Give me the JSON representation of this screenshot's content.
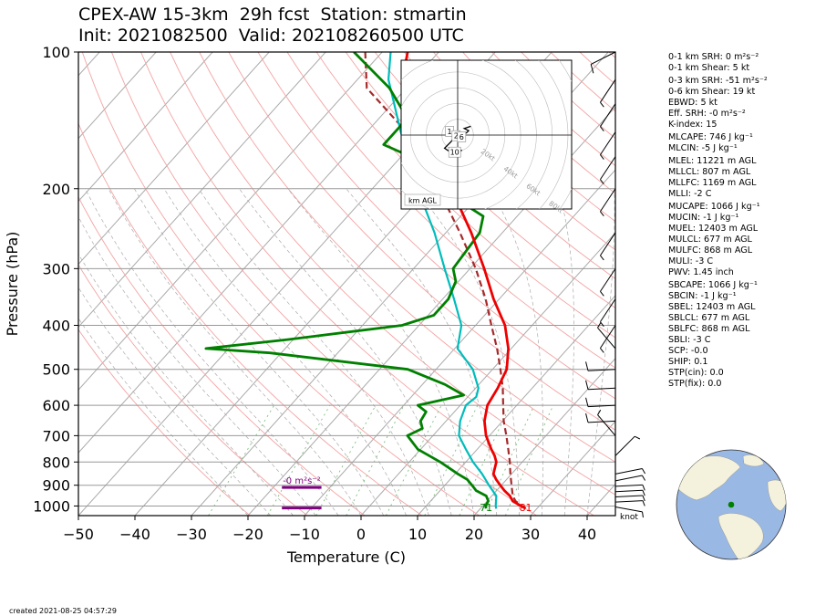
{
  "header": {
    "title_line1": "CPEX-AW 15-3km  29h fcst  Station: stmartin",
    "title_line2": "Init: 2021082500  Valid: 202108260500 UTC"
  },
  "footer": {
    "created": "created 2021-08-25 04:57:29"
  },
  "indices": [
    "0-1 km SRH: 0 m²s⁻²",
    "0-1 km Shear: 5 kt",
    "0-3 km SRH: -51 m²s⁻²",
    "0-6 km Shear: 19 kt",
    "EBWD: 5 kt",
    "Eff. SRH: -0 m²s⁻²",
    "K-index: 15",
    "MLCAPE: 746 J kg⁻¹",
    "MLCIN: -5 J kg⁻¹",
    "MLEL: 11221 m AGL",
    "MLLCL: 807 m AGL",
    "MLLFC: 1169 m AGL",
    "MLLI: -2 C",
    "MUCAPE: 1066 J kg⁻¹",
    "MUCIN: -1 J kg⁻¹",
    "MUEL: 12403 m AGL",
    "MULCL: 677 m AGL",
    "MULFC: 868 m AGL",
    "MULI: -3 C",
    "PWV: 1.45 inch",
    "SBCAPE: 1066 J kg⁻¹",
    "SBCIN: -1 J kg⁻¹",
    "SBEL: 12403 m AGL",
    "SBLCL: 677 m AGL",
    "SBLFC: 868 m AGL",
    "SBLI: -3 C",
    "SCP: -0.0",
    "SHIP: 0.1",
    "STP(cin): 0.0",
    "STP(fix): 0.0"
  ],
  "colors": {
    "temperature": "#ee0000",
    "dewpoint": "#008000",
    "wetbulb": "#00bcbc",
    "parcel": "#a52a2a",
    "srh_bar": "#800080",
    "dry_adiabat": "#f4a3a3",
    "moist_adiabat": "#aaaaaa",
    "mixing_ratio": "#7fbf7f",
    "ocean": "#9ab8e4",
    "land": "#f4f2dc",
    "station": "#008000"
  },
  "chart_data": [
    {
      "type": "line",
      "subtype": "skew-T log-P",
      "xlabel": "Temperature (C)",
      "ylabel": "Pressure (hPa)",
      "xlim": [
        -50,
        45
      ],
      "ylim": [
        1050,
        100
      ],
      "y_scale": "log",
      "x_ticks": [
        -50,
        -40,
        -30,
        -20,
        -10,
        0,
        10,
        20,
        30,
        40
      ],
      "y_ticks": [
        1000,
        900,
        800,
        700,
        600,
        500,
        400,
        300,
        200,
        100
      ],
      "grid": true,
      "series": [
        {
          "key": "temperature",
          "points": [
            [
              1013,
              28
            ],
            [
              1000,
              26.8
            ],
            [
              975,
              24.5
            ],
            [
              950,
              23.2
            ],
            [
              925,
              21.4
            ],
            [
              900,
              19.8
            ],
            [
              875,
              18.2
            ],
            [
              850,
              16.8
            ],
            [
              800,
              15.4
            ],
            [
              775,
              14.1
            ],
            [
              750,
              12.5
            ],
            [
              700,
              9.4
            ],
            [
              650,
              6.8
            ],
            [
              600,
              4.8
            ],
            [
              550,
              3.9
            ],
            [
              500,
              2.5
            ],
            [
              450,
              -0.5
            ],
            [
              400,
              -4.8
            ],
            [
              350,
              -11
            ],
            [
              300,
              -17.5
            ],
            [
              250,
              -25.5
            ],
            [
              200,
              -36
            ],
            [
              170,
              -43.5
            ],
            [
              150,
              -49.5
            ],
            [
              130,
              -56
            ],
            [
              115,
              -62
            ],
            [
              100,
              -65.5
            ]
          ]
        },
        {
          "key": "dewpoint",
          "points": [
            [
              1013,
              21
            ],
            [
              1000,
              20.5
            ],
            [
              975,
              20.2
            ],
            [
              950,
              19
            ],
            [
              925,
              16.4
            ],
            [
              900,
              14.8
            ],
            [
              875,
              13.1
            ],
            [
              850,
              10.5
            ],
            [
              800,
              5.5
            ],
            [
              750,
              -0.5
            ],
            [
              700,
              -4.5
            ],
            [
              675,
              -3
            ],
            [
              650,
              -4.5
            ],
            [
              620,
              -5
            ],
            [
              600,
              -7.5
            ],
            [
              570,
              -1
            ],
            [
              540,
              -6
            ],
            [
              500,
              -15
            ],
            [
              460,
              -42
            ],
            [
              450,
              -54
            ],
            [
              430,
              -41
            ],
            [
              400,
              -23
            ],
            [
              380,
              -19
            ],
            [
              350,
              -19
            ],
            [
              320,
              -20.5
            ],
            [
              300,
              -23
            ],
            [
              250,
              -24
            ],
            [
              230,
              -26
            ],
            [
              200,
              -38
            ],
            [
              180,
              -42
            ],
            [
              160,
              -55
            ],
            [
              140,
              -55
            ],
            [
              120,
              -63
            ],
            [
              100,
              -75
            ]
          ]
        },
        {
          "key": "wetbulb",
          "points": [
            [
              1013,
              22.8
            ],
            [
              1000,
              22.3
            ],
            [
              950,
              20.8
            ],
            [
              900,
              17.8
            ],
            [
              850,
              14.8
            ],
            [
              800,
              11.3
            ],
            [
              750,
              8
            ],
            [
              700,
              4.6
            ],
            [
              650,
              2.5
            ],
            [
              600,
              1
            ],
            [
              575,
              1.5
            ],
            [
              550,
              0.5
            ],
            [
              500,
              -3.5
            ],
            [
              450,
              -9.5
            ],
            [
              400,
              -12.5
            ],
            [
              350,
              -18
            ],
            [
              300,
              -24.5
            ],
            [
              250,
              -32
            ],
            [
              200,
              -42
            ],
            [
              150,
              -54
            ],
            [
              115,
              -64.5
            ],
            [
              100,
              -68.5
            ]
          ]
        },
        {
          "key": "parcel",
          "points": [
            [
              1013,
              28
            ],
            [
              975,
              25
            ],
            [
              950,
              23.7
            ],
            [
              900,
              21.8
            ],
            [
              850,
              19.8
            ],
            [
              800,
              17.8
            ],
            [
              750,
              15.5
            ],
            [
              700,
              13
            ],
            [
              650,
              10.2
            ],
            [
              600,
              7.6
            ],
            [
              550,
              4.8
            ],
            [
              500,
              1.4
            ],
            [
              450,
              -2.5
            ],
            [
              400,
              -7.2
            ],
            [
              350,
              -12.4
            ],
            [
              300,
              -19
            ],
            [
              250,
              -27.5
            ],
            [
              200,
              -38.3
            ],
            [
              150,
              -53
            ],
            [
              120,
              -67
            ],
            [
              100,
              -73
            ]
          ]
        }
      ],
      "surface_labels": [
        {
          "key": "dewpoint",
          "text": "71",
          "temp": 21
        },
        {
          "key": "temperature",
          "text": "81",
          "temp": 28
        }
      ],
      "srh_bars": [
        {
          "label": "-0 m²s⁻²",
          "pressure": 910,
          "t_from": -14,
          "t_to": -7
        },
        {
          "label": "",
          "pressure": 1010,
          "t_from": -14,
          "t_to": -7
        }
      ],
      "wind_barbs_label": "knot",
      "wind_barbs": [
        {
          "pressure": 1005,
          "speed": 7,
          "dir": "east-southeast"
        },
        {
          "pressure": 980,
          "speed": 7,
          "dir": "east"
        },
        {
          "pressure": 955,
          "speed": 7,
          "dir": "east"
        },
        {
          "pressure": 930,
          "speed": 7,
          "dir": "east"
        },
        {
          "pressure": 905,
          "speed": 6,
          "dir": "east"
        },
        {
          "pressure": 880,
          "speed": 6,
          "dir": "east-northeast"
        },
        {
          "pressure": 850,
          "speed": 5,
          "dir": "east-northeast"
        },
        {
          "pressure": 775,
          "speed": 6,
          "dir": "northeast"
        },
        {
          "pressure": 700,
          "speed": 6,
          "dir": "northwest"
        },
        {
          "pressure": 650,
          "speed": 8,
          "dir": "west"
        },
        {
          "pressure": 600,
          "speed": 9,
          "dir": "west"
        },
        {
          "pressure": 550,
          "speed": 10,
          "dir": "west"
        },
        {
          "pressure": 500,
          "speed": 9,
          "dir": "west"
        },
        {
          "pressure": 450,
          "speed": 7,
          "dir": "northwest"
        },
        {
          "pressure": 400,
          "speed": 6,
          "dir": "southwest"
        },
        {
          "pressure": 350,
          "speed": 5,
          "dir": "southwest"
        },
        {
          "pressure": 300,
          "speed": 6,
          "dir": "southwest"
        },
        {
          "pressure": 250,
          "speed": 7,
          "dir": "southwest"
        },
        {
          "pressure": 200,
          "speed": 6,
          "dir": "southwest"
        },
        {
          "pressure": 170,
          "speed": 5,
          "dir": "southwest"
        },
        {
          "pressure": 150,
          "speed": 6,
          "dir": "southwest"
        },
        {
          "pressure": 130,
          "speed": 7,
          "dir": "southwest"
        },
        {
          "pressure": 115,
          "speed": 6,
          "dir": "southwest"
        },
        {
          "pressure": 100,
          "speed": 8,
          "dir": "west-southwest"
        }
      ]
    },
    {
      "type": "line",
      "subtype": "hodograph",
      "units_label": "km AGL",
      "ring_labels": [
        "20kt",
        "40kt",
        "60kt",
        "80kt"
      ],
      "trace": [
        [
          2,
          -7
        ],
        [
          -3,
          -8
        ],
        [
          -6,
          -6
        ],
        [
          -3,
          -3
        ],
        [
          -1,
          0
        ],
        [
          1,
          0
        ],
        [
          4,
          1
        ],
        [
          5,
          2
        ],
        [
          3,
          3
        ],
        [
          6,
          4
        ]
      ],
      "height_labels": [
        {
          "text": "1",
          "u": -3.5,
          "v": 1.5
        },
        {
          "text": "2",
          "u": -0.5,
          "v": -0.5
        },
        {
          "text": "6",
          "u": 2,
          "v": -1
        },
        {
          "text": "10",
          "u": -2,
          "v": -8
        }
      ]
    },
    {
      "type": "map",
      "subtype": "globe-locator",
      "station": "stmartin"
    }
  ]
}
